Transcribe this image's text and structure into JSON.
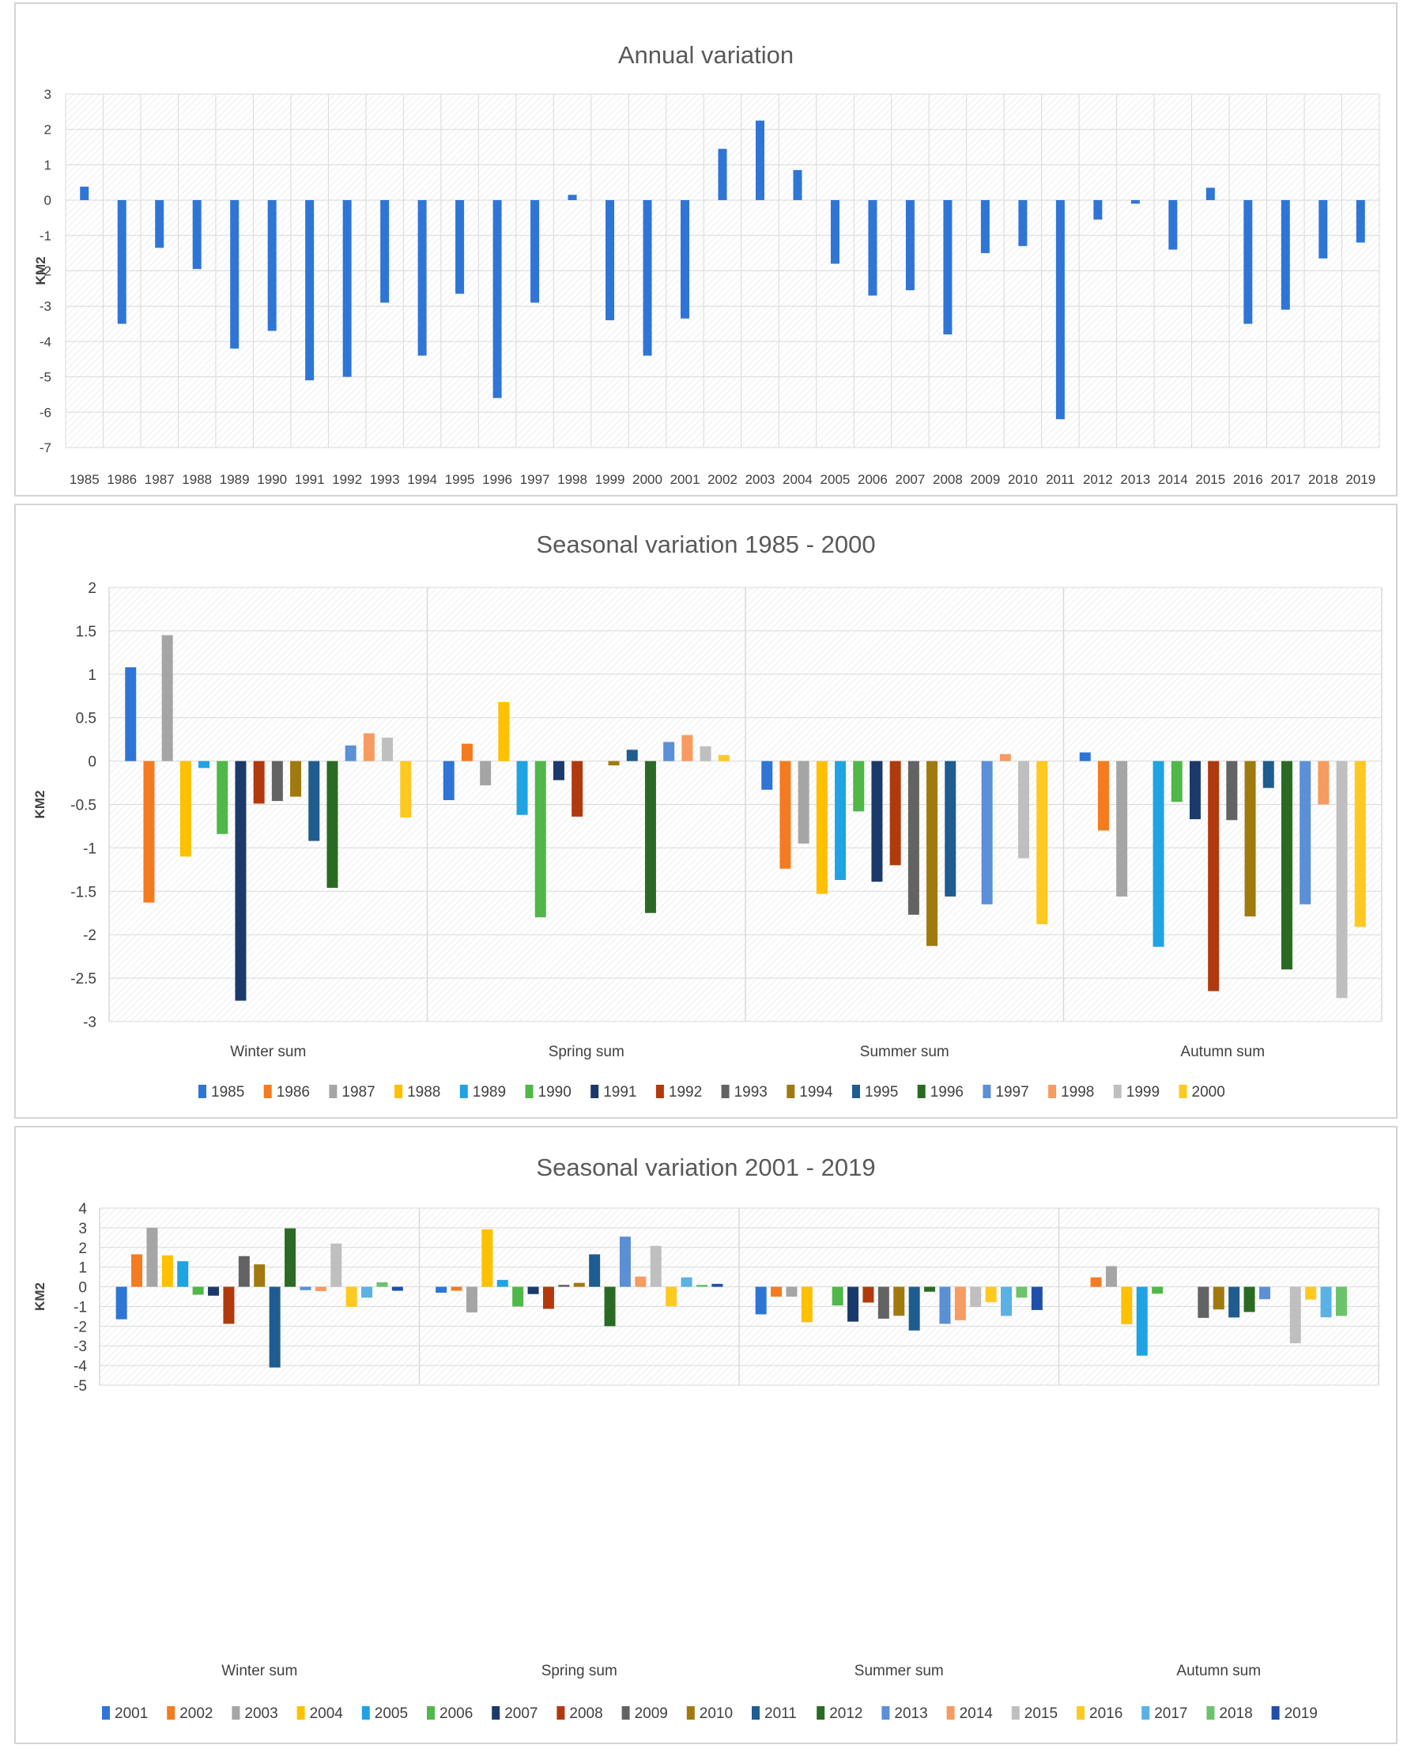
{
  "chart_data": [
    {
      "type": "bar",
      "title": "Annual variation",
      "xlabel": "",
      "ylabel": "KM2",
      "ylim": [
        -7,
        3
      ],
      "yticks": [
        "3",
        "2",
        "1",
        "0",
        "-1",
        "-2",
        "-3",
        "-4",
        "-5",
        "-6",
        "-7"
      ],
      "color": "#2E75D6",
      "categories": [
        "1985",
        "1986",
        "1987",
        "1988",
        "1989",
        "1990",
        "1991",
        "1992",
        "1993",
        "1994",
        "1995",
        "1996",
        "1997",
        "1998",
        "1999",
        "2000",
        "2001",
        "2002",
        "2003",
        "2004",
        "2005",
        "2006",
        "2007",
        "2008",
        "2009",
        "2010",
        "2011",
        "2012",
        "2013",
        "2014",
        "2015",
        "2016",
        "2017",
        "2018",
        "2019"
      ],
      "values": [
        0.38,
        -3.5,
        -1.35,
        -1.95,
        -4.2,
        -3.7,
        -5.1,
        -5.0,
        -2.9,
        -4.4,
        -2.65,
        -5.6,
        -2.9,
        0.15,
        -3.4,
        -4.4,
        -3.35,
        1.45,
        2.25,
        0.85,
        -1.8,
        -2.7,
        -2.55,
        -3.8,
        -1.5,
        -1.3,
        -6.2,
        -0.55,
        -0.1,
        -1.4,
        0.35,
        -3.5,
        -3.1,
        -1.65,
        -1.2
      ]
    },
    {
      "type": "bar",
      "title": "Seasonal variation 1985 - 2000",
      "xlabel": "",
      "ylabel": "KM2",
      "ylim": [
        -3,
        2
      ],
      "yticks": [
        "2",
        "1.5",
        "1",
        "0.5",
        "0",
        "-0.5",
        "-1",
        "-1.5",
        "-2",
        "-2.5",
        "-3"
      ],
      "legend_position": "bottom",
      "categories": [
        "Winter sum",
        "Spring sum",
        "Summer sum",
        "Autumn sum"
      ],
      "series": [
        {
          "name": "1985",
          "color": "#2E75D6",
          "values": [
            1.08,
            -0.45,
            -0.33,
            0.1
          ]
        },
        {
          "name": "1986",
          "color": "#F47B20",
          "values": [
            -1.63,
            0.2,
            -1.24,
            -0.8
          ]
        },
        {
          "name": "1987",
          "color": "#A5A5A5",
          "values": [
            1.45,
            -0.28,
            -0.95,
            -1.56
          ]
        },
        {
          "name": "1988",
          "color": "#FFC000",
          "values": [
            -1.1,
            0.68,
            -1.53,
            0.0
          ]
        },
        {
          "name": "1989",
          "color": "#1FA3E3",
          "values": [
            -0.08,
            -0.62,
            -1.37,
            -2.14
          ]
        },
        {
          "name": "1990",
          "color": "#4FB848",
          "values": [
            -0.84,
            -1.8,
            -0.58,
            -0.47
          ]
        },
        {
          "name": "1991",
          "color": "#1B3A6B",
          "values": [
            -2.76,
            -0.22,
            -1.39,
            -0.67
          ]
        },
        {
          "name": "1992",
          "color": "#B03A0E",
          "values": [
            -0.49,
            -0.64,
            -1.2,
            -2.65
          ]
        },
        {
          "name": "1993",
          "color": "#636363",
          "values": [
            -0.46,
            0.0,
            -1.77,
            -0.68
          ]
        },
        {
          "name": "1994",
          "color": "#A07A0F",
          "values": [
            -0.41,
            -0.05,
            -2.13,
            -1.79
          ]
        },
        {
          "name": "1995",
          "color": "#1F5C8F",
          "values": [
            -0.92,
            0.13,
            -1.56,
            -0.31
          ]
        },
        {
          "name": "1996",
          "color": "#2A6B23",
          "values": [
            -1.46,
            -1.75,
            0.0,
            -2.4
          ]
        },
        {
          "name": "1997",
          "color": "#5B8FD6",
          "values": [
            0.18,
            0.22,
            -1.65,
            -1.65
          ]
        },
        {
          "name": "1998",
          "color": "#F79B62",
          "values": [
            0.32,
            0.3,
            0.08,
            -0.5
          ]
        },
        {
          "name": "1999",
          "color": "#BFBFBF",
          "values": [
            0.27,
            0.17,
            -1.12,
            -2.73
          ]
        },
        {
          "name": "2000",
          "color": "#FFC920",
          "values": [
            -0.65,
            0.07,
            -1.88,
            -1.91
          ]
        }
      ]
    },
    {
      "type": "bar",
      "title": "Seasonal variation 2001 - 2019",
      "xlabel": "",
      "ylabel": "KM2",
      "ylim": [
        -5,
        4
      ],
      "yticks": [
        "4",
        "3",
        "2",
        "1",
        "0",
        "-1",
        "-2",
        "-3",
        "-4",
        "-5"
      ],
      "legend_position": "bottom",
      "categories": [
        "Winter sum",
        "Spring sum",
        "Summer sum",
        "Autumn sum"
      ],
      "series": [
        {
          "name": "2001",
          "color": "#2E75D6",
          "values": [
            -1.65,
            -0.3,
            -1.4,
            0.0
          ]
        },
        {
          "name": "2002",
          "color": "#F47B20",
          "values": [
            1.65,
            -0.2,
            -0.5,
            0.48
          ]
        },
        {
          "name": "2003",
          "color": "#A5A5A5",
          "values": [
            3.0,
            -1.3,
            -0.5,
            1.05
          ]
        },
        {
          "name": "2004",
          "color": "#FFC000",
          "values": [
            1.6,
            2.92,
            -1.8,
            -1.9
          ]
        },
        {
          "name": "2005",
          "color": "#1FA3E3",
          "values": [
            1.3,
            0.35,
            0.0,
            -3.5
          ]
        },
        {
          "name": "2006",
          "color": "#4FB848",
          "values": [
            -0.4,
            -1.0,
            -0.95,
            -0.35
          ]
        },
        {
          "name": "2007",
          "color": "#1B3A6B",
          "values": [
            -0.45,
            -0.37,
            -1.77,
            0.0
          ]
        },
        {
          "name": "2008",
          "color": "#B03A0E",
          "values": [
            -1.88,
            -1.12,
            -0.8,
            0.0
          ]
        },
        {
          "name": "2009",
          "color": "#636363",
          "values": [
            1.56,
            0.1,
            -1.62,
            -1.58
          ]
        },
        {
          "name": "2010",
          "color": "#A07A0F",
          "values": [
            1.14,
            0.2,
            -1.47,
            -1.15
          ]
        },
        {
          "name": "2011",
          "color": "#1F5C8F",
          "values": [
            -4.1,
            1.65,
            -2.22,
            -1.56
          ]
        },
        {
          "name": "2012",
          "color": "#2A6B23",
          "values": [
            2.97,
            -2.0,
            -0.25,
            -1.28
          ]
        },
        {
          "name": "2013",
          "color": "#5B8FD6",
          "values": [
            -0.17,
            2.55,
            -1.88,
            -0.63
          ]
        },
        {
          "name": "2014",
          "color": "#F79B62",
          "values": [
            -0.22,
            0.52,
            -1.7,
            0.0
          ]
        },
        {
          "name": "2015",
          "color": "#BFBFBF",
          "values": [
            2.2,
            2.08,
            -1.03,
            -2.87
          ]
        },
        {
          "name": "2016",
          "color": "#FFC920",
          "values": [
            -1.02,
            -0.98,
            -0.78,
            -0.65
          ]
        },
        {
          "name": "2017",
          "color": "#5AB1E3",
          "values": [
            -0.55,
            0.48,
            -1.48,
            -1.55
          ]
        },
        {
          "name": "2018",
          "color": "#6CC36B",
          "values": [
            0.23,
            0.1,
            -0.55,
            -1.48
          ]
        },
        {
          "name": "2019",
          "color": "#1F4FA8",
          "values": [
            -0.2,
            0.15,
            -1.18,
            0.0
          ]
        }
      ]
    }
  ]
}
